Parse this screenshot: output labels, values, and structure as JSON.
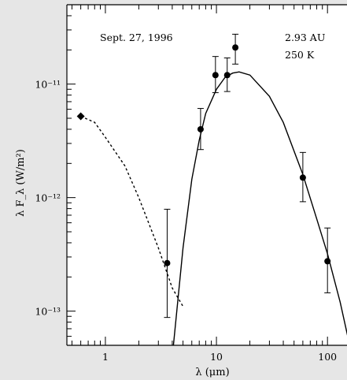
{
  "chart_data": {
    "type": "scatter",
    "title": "",
    "annotations": {
      "date": "Sept. 27, 1996",
      "distance": "2.93 AU",
      "temperature": "250 K"
    },
    "xlabel": "λ (μm)",
    "ylabel": "λ F_λ (W/m²)",
    "xscale": "log",
    "yscale": "log",
    "xlim": [
      0.45,
      160
    ],
    "ylim": [
      5e-14,
      5e-11
    ],
    "xticks": [
      {
        "value": 1,
        "label": "1"
      },
      {
        "value": 10,
        "label": "10"
      },
      {
        "value": 100,
        "label": "100"
      }
    ],
    "yticks": [
      {
        "value": 1e-13,
        "label": "10⁻¹³"
      },
      {
        "value": 1e-12,
        "label": "10⁻¹²"
      },
      {
        "value": 1e-11,
        "label": "10⁻¹¹"
      }
    ],
    "series": [
      {
        "marker": "diamond",
        "points": [
          {
            "x": 0.6,
            "y": 5.2e-12
          }
        ]
      },
      {
        "marker": "circle",
        "points": [
          {
            "x": 3.6,
            "y": 2.65e-13,
            "ylo": 8.8e-14,
            "yhi": 7.9e-13
          },
          {
            "x": 7.2,
            "y": 4e-12,
            "ylo": 2.65e-12,
            "yhi": 6.1e-12
          },
          {
            "x": 9.8,
            "y": 1.2e-11,
            "ylo": 8.4e-12,
            "yhi": 1.75e-11
          },
          {
            "x": 12.5,
            "y": 1.2e-11,
            "ylo": 8.6e-12,
            "yhi": 1.7e-11
          },
          {
            "x": 14.8,
            "y": 2.1e-11,
            "ylo": 1.5e-11,
            "yhi": 2.75e-11
          },
          {
            "x": 60,
            "y": 1.5e-12,
            "ylo": 9.2e-13,
            "yhi": 2.5e-12
          },
          {
            "x": 100,
            "y": 2.75e-13,
            "ylo": 1.45e-13,
            "yhi": 5.4e-13
          }
        ]
      },
      {
        "style": "dashed",
        "points": [
          {
            "x": 0.6,
            "y": 5.2e-12
          },
          {
            "x": 0.8,
            "y": 4.6e-12
          },
          {
            "x": 1.0,
            "y": 3.4e-12
          },
          {
            "x": 1.5,
            "y": 1.9e-12
          },
          {
            "x": 2.0,
            "y": 1e-12
          },
          {
            "x": 3.0,
            "y": 3.6e-13
          },
          {
            "x": 4.0,
            "y": 1.6e-13
          },
          {
            "x": 5.0,
            "y": 1.1e-13
          }
        ]
      },
      {
        "style": "solid",
        "points": [
          {
            "x": 4.1,
            "y": 5e-14
          },
          {
            "x": 5.0,
            "y": 3.6e-13
          },
          {
            "x": 6.0,
            "y": 1.45e-12
          },
          {
            "x": 7.0,
            "y": 3.2e-12
          },
          {
            "x": 8.0,
            "y": 5.5e-12
          },
          {
            "x": 10.0,
            "y": 9e-12
          },
          {
            "x": 12.0,
            "y": 1.15e-11
          },
          {
            "x": 14.0,
            "y": 1.25e-11
          },
          {
            "x": 16.0,
            "y": 1.28e-11
          },
          {
            "x": 20.0,
            "y": 1.2e-11
          },
          {
            "x": 30.0,
            "y": 7.8e-12
          },
          {
            "x": 40.0,
            "y": 4.6e-12
          },
          {
            "x": 60.0,
            "y": 1.6e-12
          },
          {
            "x": 80.0,
            "y": 6.5e-13
          },
          {
            "x": 100.0,
            "y": 3.2e-13
          },
          {
            "x": 130.0,
            "y": 1.2e-13
          },
          {
            "x": 155.0,
            "y": 5.5e-14
          }
        ]
      }
    ]
  }
}
